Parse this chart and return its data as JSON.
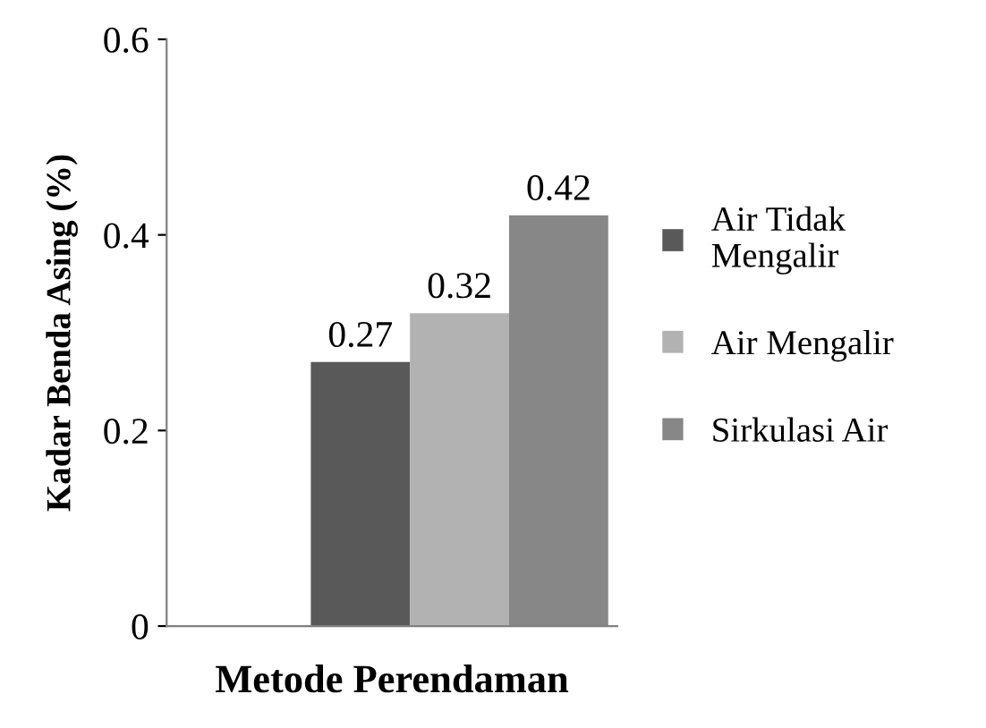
{
  "chart_data": {
    "type": "bar",
    "xlabel": "Metode Perendaman",
    "ylabel": "Kadar Benda Asing (%)",
    "categories": [
      null
    ],
    "series": [
      {
        "name": "Air Tidak\nMengalir",
        "color": "#595959",
        "values": [
          0.27
        ]
      },
      {
        "name": "Air Mengalir",
        "color": "#b2b2b2",
        "values": [
          0.32
        ]
      },
      {
        "name": "Sirkulasi Air",
        "color": "#878787",
        "values": [
          0.42
        ]
      }
    ],
    "ylim": [
      0,
      0.6
    ],
    "yticks": [
      0,
      0.2,
      0.4,
      0.6
    ],
    "grid": false,
    "legend": "right",
    "data_labels": true
  }
}
